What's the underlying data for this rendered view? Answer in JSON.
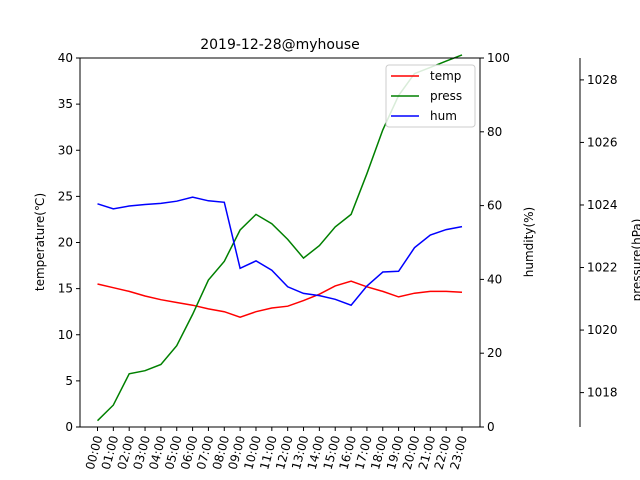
{
  "chart_data": {
    "type": "line",
    "title": "2019-12-28@myhouse",
    "categories": [
      "00:00",
      "01:00",
      "02:00",
      "03:00",
      "04:00",
      "05:00",
      "06:00",
      "07:00",
      "08:00",
      "09:00",
      "10:00",
      "11:00",
      "12:00",
      "13:00",
      "14:00",
      "15:00",
      "16:00",
      "17:00",
      "18:00",
      "19:00",
      "20:00",
      "21:00",
      "22:00",
      "23:00"
    ],
    "axes": {
      "left": {
        "label": "temperature(℃)",
        "min": 0,
        "max": 40,
        "ticks": [
          0,
          5,
          10,
          15,
          20,
          25,
          30,
          35,
          40
        ]
      },
      "right1": {
        "label": "humdity(%)",
        "min": 0,
        "max": 100,
        "ticks": [
          0,
          20,
          40,
          60,
          80,
          100
        ]
      },
      "right2": {
        "label": "pressure(hPa)",
        "min": 1016.9,
        "max": 1028.7,
        "ticks": [
          1018,
          1020,
          1022,
          1024,
          1026,
          1028
        ]
      }
    },
    "legend": {
      "placement": "upper-right"
    },
    "series": [
      {
        "name": "temp",
        "axis": "left",
        "color": "#ff0000",
        "values": [
          15.5,
          15.1,
          14.7,
          14.2,
          13.8,
          13.5,
          13.2,
          12.8,
          12.5,
          11.9,
          12.5,
          12.9,
          13.1,
          13.7,
          14.4,
          15.3,
          15.8,
          15.2,
          14.7,
          14.1,
          14.5,
          14.7,
          14.7,
          14.6
        ]
      },
      {
        "name": "press",
        "axis": "right2",
        "color": "#008000",
        "values": [
          1017.1,
          1017.6,
          1018.6,
          1018.7,
          1018.9,
          1019.5,
          1020.5,
          1021.6,
          1022.2,
          1023.2,
          1023.7,
          1023.4,
          1022.9,
          1022.3,
          1022.7,
          1023.3,
          1023.7,
          1025.0,
          1026.4,
          1027.5,
          1028.2,
          1028.4,
          1028.6,
          1028.8
        ]
      },
      {
        "name": "hum",
        "axis": "right1",
        "color": "#0000ff",
        "values": [
          60.5,
          59.1,
          59.9,
          60.3,
          60.6,
          61.2,
          62.3,
          61.3,
          60.9,
          43.0,
          45.0,
          42.5,
          38.0,
          36.2,
          35.6,
          34.6,
          33.0,
          38.2,
          42.0,
          42.2,
          48.6,
          52.0,
          53.5,
          54.3
        ]
      }
    ]
  }
}
